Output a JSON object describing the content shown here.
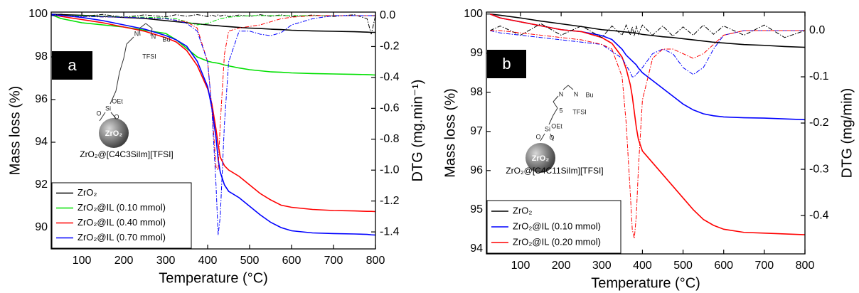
{
  "chart_data": [
    {
      "type": "line",
      "panel_label": "a",
      "caption": "ZrO₂@[C4C3SiIm][TFSI]",
      "structure_labels": [
        "N",
        "N",
        "Bu",
        "TFSI",
        "OEt",
        "Si",
        "O",
        "O",
        "ZrO₂"
      ],
      "xlabel": "Temperature (°C)",
      "ylabel": "Mass loss (%)",
      "y2label": "DTG (mg.min⁻¹)",
      "x": [
        25,
        50,
        100,
        150,
        200,
        250,
        300,
        325,
        350,
        375,
        400,
        410,
        420,
        425,
        430,
        440,
        450,
        475,
        500,
        525,
        550,
        575,
        600,
        650,
        700,
        750,
        780,
        790,
        800
      ],
      "xlim": [
        27,
        800
      ],
      "xticks": [
        100,
        200,
        300,
        400,
        500,
        600,
        700,
        800
      ],
      "ylim": [
        89,
        100.1
      ],
      "yticks": [
        90,
        92,
        94,
        96,
        98,
        100
      ],
      "y2lim": [
        -1.51,
        0.023
      ],
      "y2ticks": [
        {
          "value": 0,
          "label": "0.0"
        },
        -0.2,
        -0.4,
        -0.6,
        -0.8,
        {
          "value": -1,
          "label": "-1.0"
        },
        -1.2,
        -1.4
      ],
      "legend": "lower left",
      "series": [
        {
          "name": "ZrO₂",
          "color": "#000000",
          "style": "solid",
          "values": [
            100.0,
            99.98,
            99.95,
            99.9,
            99.85,
            99.8,
            99.7,
            99.65,
            99.6,
            99.55,
            99.5,
            99.48,
            99.47,
            99.46,
            99.45,
            99.43,
            99.42,
            99.38,
            99.35,
            99.33,
            99.3,
            99.28,
            99.25,
            99.22,
            99.2,
            99.18,
            99.16,
            99.15,
            99.15
          ]
        },
        {
          "name": "ZrO₂@IL (0.10 mmol)",
          "color": "#00e000",
          "style": "solid",
          "values": [
            100.0,
            99.8,
            99.6,
            99.5,
            99.4,
            99.25,
            99.1,
            98.8,
            98.4,
            98.0,
            97.8,
            97.75,
            97.72,
            97.7,
            97.68,
            97.62,
            97.58,
            97.48,
            97.4,
            97.35,
            97.3,
            97.28,
            97.25,
            97.22,
            97.2,
            97.18,
            97.17,
            97.16,
            97.15
          ]
        },
        {
          "name": "ZrO₂@IL (0.40 mmol)",
          "color": "#ff0000",
          "style": "solid",
          "values": [
            100.0,
            99.9,
            99.75,
            99.6,
            99.4,
            99.2,
            98.9,
            98.7,
            98.3,
            97.6,
            96.5,
            95.8,
            94.6,
            93.9,
            93.3,
            92.9,
            92.7,
            92.4,
            92.0,
            91.6,
            91.3,
            91.05,
            90.95,
            90.85,
            90.8,
            90.78,
            90.76,
            90.76,
            90.75
          ]
        },
        {
          "name": "ZrO₂@IL (0.70 mmol)",
          "color": "#0000ff",
          "style": "solid",
          "values": [
            100.0,
            99.95,
            99.85,
            99.7,
            99.5,
            99.3,
            99.0,
            98.8,
            98.5,
            97.8,
            96.6,
            95.6,
            94.2,
            93.2,
            92.6,
            92.0,
            91.7,
            91.4,
            91.0,
            90.6,
            90.25,
            90.0,
            89.85,
            89.75,
            89.72,
            89.7,
            89.68,
            89.66,
            89.65
          ]
        },
        {
          "axis": "y2",
          "color": "#000000",
          "style": "dashdot",
          "values": [
            0.0,
            0.01,
            -0.005,
            0.008,
            -0.01,
            0.005,
            -0.008,
            0.006,
            -0.004,
            0.007,
            -0.006,
            0.004,
            -0.005,
            0.006,
            -0.003,
            0.005,
            -0.006,
            0.004,
            -0.005,
            0.006,
            -0.004,
            0.005,
            -0.006,
            0.004,
            -0.005,
            0.006,
            -0.02,
            -0.12,
            0.0
          ]
        },
        {
          "axis": "y2",
          "color": "#00e000",
          "style": "dashdot",
          "values": [
            0.0,
            0.0,
            0.0,
            -0.005,
            -0.008,
            -0.01,
            -0.015,
            -0.02,
            -0.04,
            -0.06,
            -0.05,
            -0.04,
            -0.03,
            -0.025,
            -0.02,
            -0.015,
            -0.01,
            -0.005,
            0.0,
            0.0,
            0.0,
            0.0,
            0.0,
            0.0,
            0.0,
            0.0,
            0.0,
            0.0,
            0.0
          ]
        },
        {
          "axis": "y2",
          "color": "#ff0000",
          "style": "dashdot",
          "values": [
            0.0,
            0.0,
            -0.005,
            -0.008,
            -0.01,
            -0.015,
            -0.02,
            -0.03,
            -0.04,
            -0.08,
            -0.3,
            -0.6,
            -0.98,
            -1.0,
            -0.7,
            -0.25,
            -0.1,
            -0.08,
            -0.07,
            -0.06,
            -0.04,
            -0.02,
            -0.01,
            0.0,
            0.0,
            0.0,
            0.0,
            0.0,
            0.0
          ]
        },
        {
          "axis": "y2",
          "color": "#0000ff",
          "style": "dashdot",
          "values": [
            0.0,
            0.0,
            -0.005,
            -0.008,
            -0.01,
            -0.015,
            -0.02,
            -0.03,
            -0.05,
            -0.1,
            -0.3,
            -0.6,
            -1.1,
            -1.42,
            -1.3,
            -0.7,
            -0.3,
            -0.1,
            -0.1,
            -0.12,
            -0.13,
            -0.11,
            -0.06,
            -0.02,
            0.0,
            0.0,
            0.0,
            0.0,
            0.0
          ]
        }
      ]
    },
    {
      "type": "line",
      "panel_label": "b",
      "caption": "ZrO₂@[C4C11SiIm][TFSI]",
      "structure_labels": [
        "N",
        "N",
        "Bu",
        "5",
        "TFSI",
        "OEt",
        "Si",
        "O",
        "O",
        "ZrO₂"
      ],
      "xlabel": "Temperature (°C)",
      "ylabel": "Mass loss (%)",
      "y2label": "DTG (mg/min)",
      "x": [
        25,
        50,
        100,
        150,
        200,
        250,
        300,
        325,
        350,
        360,
        370,
        375,
        380,
        385,
        390,
        400,
        425,
        450,
        475,
        500,
        525,
        550,
        575,
        600,
        650,
        700,
        750,
        800
      ],
      "xlim": [
        16,
        800
      ],
      "xticks": [
        100,
        200,
        300,
        400,
        500,
        600,
        700,
        800
      ],
      "ylim": [
        93.87,
        100.05
      ],
      "yticks": [
        94,
        95,
        96,
        97,
        98,
        99,
        100
      ],
      "y2lim": [
        -0.483,
        0.04
      ],
      "y2ticks": [
        {
          "value": 0,
          "label": "0.0"
        },
        -0.1,
        -0.2,
        -0.3,
        -0.4
      ],
      "legend": "lower left",
      "series": [
        {
          "name": "ZrO₂",
          "color": "#000000",
          "style": "solid",
          "values": [
            100.0,
            99.97,
            99.9,
            99.82,
            99.75,
            99.68,
            99.6,
            99.58,
            99.55,
            99.54,
            99.53,
            99.52,
            99.52,
            99.51,
            99.5,
            99.48,
            99.45,
            99.42,
            99.4,
            99.37,
            99.34,
            99.31,
            99.28,
            99.26,
            99.22,
            99.2,
            99.17,
            99.15
          ]
        },
        {
          "name": "ZrO₂@IL (0.10 mmol)",
          "color": "#0000ff",
          "style": "solid",
          "values": [
            100.0,
            99.9,
            99.8,
            99.7,
            99.6,
            99.55,
            99.45,
            99.35,
            99.1,
            98.95,
            98.85,
            98.8,
            98.75,
            98.7,
            98.62,
            98.5,
            98.3,
            98.1,
            97.9,
            97.7,
            97.55,
            97.45,
            97.4,
            97.37,
            97.35,
            97.34,
            97.32,
            97.3
          ]
        },
        {
          "name": "ZrO₂@IL (0.20 mmol)",
          "color": "#ff0000",
          "style": "solid",
          "values": [
            100.0,
            99.9,
            99.8,
            99.7,
            99.6,
            99.55,
            99.4,
            99.25,
            98.9,
            98.6,
            98.2,
            97.9,
            97.5,
            97.1,
            96.8,
            96.5,
            96.2,
            95.9,
            95.6,
            95.3,
            95.0,
            94.75,
            94.6,
            94.5,
            94.42,
            94.4,
            94.38,
            94.36
          ]
        },
        {
          "axis": "y2",
          "color": "#000000",
          "style": "dashdot",
          "values": [
            0.0,
            0.01,
            -0.01,
            0.015,
            -0.01,
            0.01,
            -0.015,
            0.01,
            -0.01,
            0.012,
            -0.01,
            0.008,
            -0.012,
            0.01,
            -0.008,
            0.012,
            -0.01,
            0.01,
            -0.012,
            0.008,
            -0.01,
            0.012,
            -0.008,
            0.01,
            -0.01,
            0.012,
            -0.015,
            0.0
          ]
        },
        {
          "axis": "y2",
          "color": "#0000ff",
          "style": "dashdot",
          "values": [
            0.0,
            -0.005,
            -0.01,
            -0.015,
            -0.02,
            -0.025,
            -0.03,
            -0.045,
            -0.06,
            -0.075,
            -0.09,
            -0.1,
            -0.1,
            -0.095,
            -0.09,
            -0.08,
            -0.05,
            -0.04,
            -0.05,
            -0.08,
            -0.095,
            -0.08,
            -0.04,
            -0.01,
            0.0,
            0.0,
            0.0,
            0.0
          ]
        },
        {
          "axis": "y2",
          "color": "#ff0000",
          "style": "dashdot",
          "values": [
            0.0,
            0.0,
            -0.005,
            -0.01,
            -0.015,
            -0.02,
            -0.03,
            -0.04,
            -0.1,
            -0.2,
            -0.35,
            -0.43,
            -0.45,
            -0.4,
            -0.3,
            -0.15,
            -0.06,
            -0.04,
            -0.04,
            -0.05,
            -0.06,
            -0.05,
            -0.03,
            -0.01,
            0.0,
            0.0,
            0.0,
            0.0
          ]
        }
      ]
    }
  ]
}
